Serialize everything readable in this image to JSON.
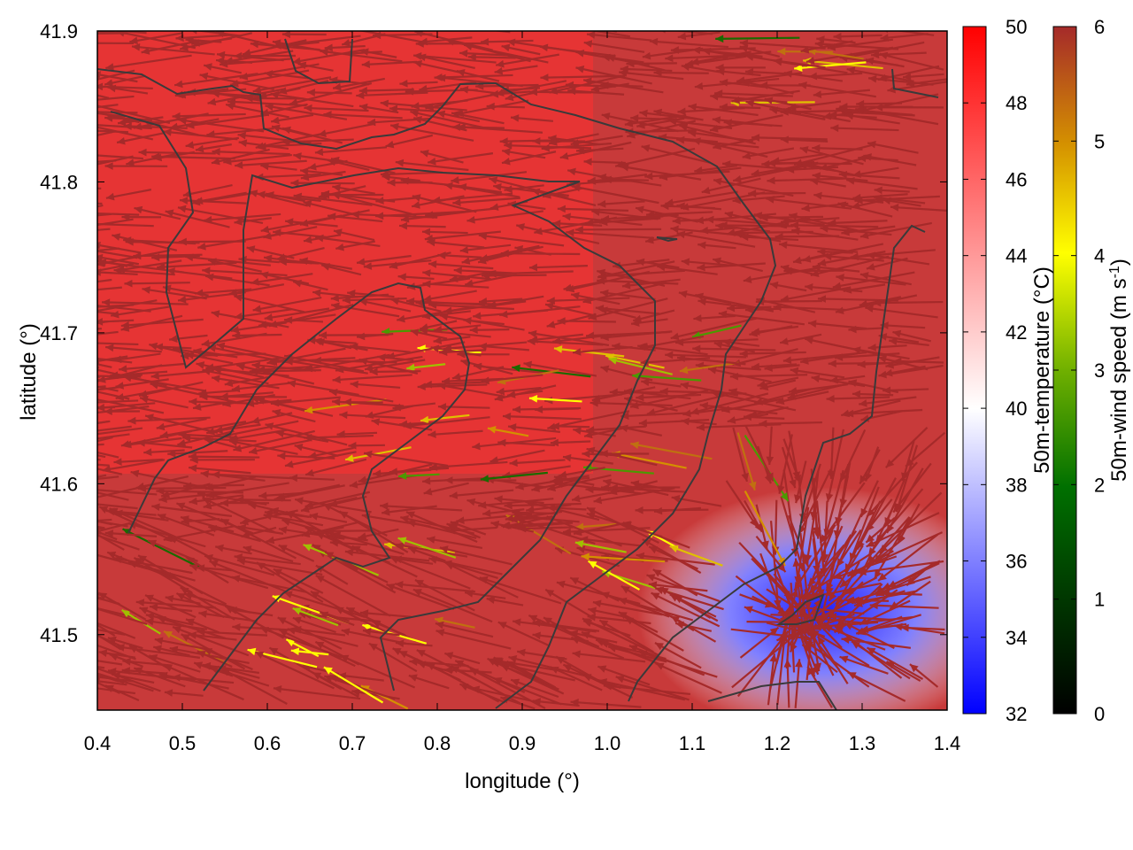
{
  "chart_data": {
    "type": "vector-field",
    "title": "",
    "xlabel": "longitude (°)",
    "ylabel": "latitude (°)",
    "xlim": [
      0.4,
      1.4
    ],
    "ylim": [
      41.45,
      41.9
    ],
    "x_ticks": [
      "0.4",
      "0.5",
      "0.6",
      "0.7",
      "0.8",
      "0.9",
      "1.0",
      "1.1",
      "1.2",
      "1.3",
      "1.4"
    ],
    "y_ticks": [
      "41.5",
      "41.6",
      "41.7",
      "41.8",
      "41.9"
    ],
    "temperature_colorbar": {
      "label": "50m-temperature (°C)",
      "range": [
        32,
        50
      ],
      "ticks": [
        "32",
        "34",
        "36",
        "38",
        "40",
        "42",
        "44",
        "46",
        "48",
        "50"
      ],
      "colors": [
        "#0000ff",
        "#ffffff",
        "#ff0000"
      ]
    },
    "wind_colorbar": {
      "label": "50m-wind speed (m s",
      "label_exp": "-1",
      "label_tail": ")",
      "range": [
        0,
        6
      ],
      "ticks": [
        "0",
        "1",
        "2",
        "3",
        "4",
        "5",
        "6"
      ],
      "colors": [
        "#000000",
        "#006000",
        "#60a000",
        "#ffff00",
        "#d8a000",
        "#c06010",
        "#a52a2a"
      ]
    },
    "grid": false,
    "vector_color_dominant": "#a52a2a"
  }
}
